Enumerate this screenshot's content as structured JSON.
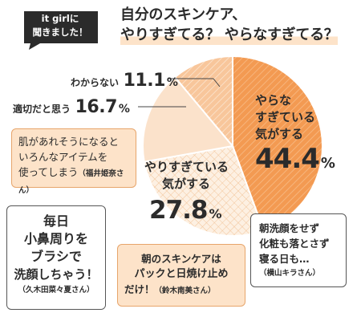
{
  "header": {
    "badge_line1": "it girlに",
    "badge_line2": "聞きました！",
    "title_line1": "自分のスキンケア、",
    "title_line2": "やりすぎてる？ やらなすぎてる？"
  },
  "colors": {
    "orange": "#f39a52",
    "light_orange": "#f7c9a0",
    "pale": "#fbe2cb",
    "cream": "#fdf0e2",
    "bubble_fill": "#fde3c9",
    "text": "#2b2b2b"
  },
  "chart_data": {
    "type": "pie",
    "slices": [
      {
        "label": "やらなすぎている気がする",
        "value": 44.4
      },
      {
        "label": "やりすぎている気がする",
        "value": 27.8
      },
      {
        "label": "適切だと思う",
        "value": 16.7
      },
      {
        "label": "わからない",
        "value": 11.1
      }
    ],
    "unit": "%"
  },
  "labels": {
    "yaranasugi_line1": "やらな",
    "yaranasugi_line2": "すぎている",
    "yaranasugi_line3": "気がする",
    "yaranasugi_pct": "44.4",
    "yarisugi_line1": "やりすぎている",
    "yarisugi_line2": "気がする",
    "yarisugi_pct": "27.8",
    "tekisetsu_text": "適切だと思う",
    "tekisetsu_pct": "16.7",
    "wakaranai_text": "わからない",
    "wakaranai_pct": "11.1",
    "unit": "%"
  },
  "comments": {
    "c1_line1": "肌があれそうになると",
    "c1_line2": "いろんなアイテムを",
    "c1_line3": "使ってしまう",
    "c1_name": "（福井姫奈さん）",
    "c2_line1": "朝洗顔をせず",
    "c2_line2": "化粧も落とさず",
    "c2_line3": "寝る日も…",
    "c2_name": "（横山キラさん）",
    "c3_line1": "毎日",
    "c3_line2": "小鼻周りを",
    "c3_line3": "ブラシで",
    "c3_line4": "洗顔しちゃう！",
    "c3_name": "（久木田菜々夏さん）",
    "c4_line1": "朝のスキンケアは",
    "c4_line2": "パックと日焼け止め",
    "c4_line3": "だけ！",
    "c4_name": "（鈴木南美さん）"
  }
}
